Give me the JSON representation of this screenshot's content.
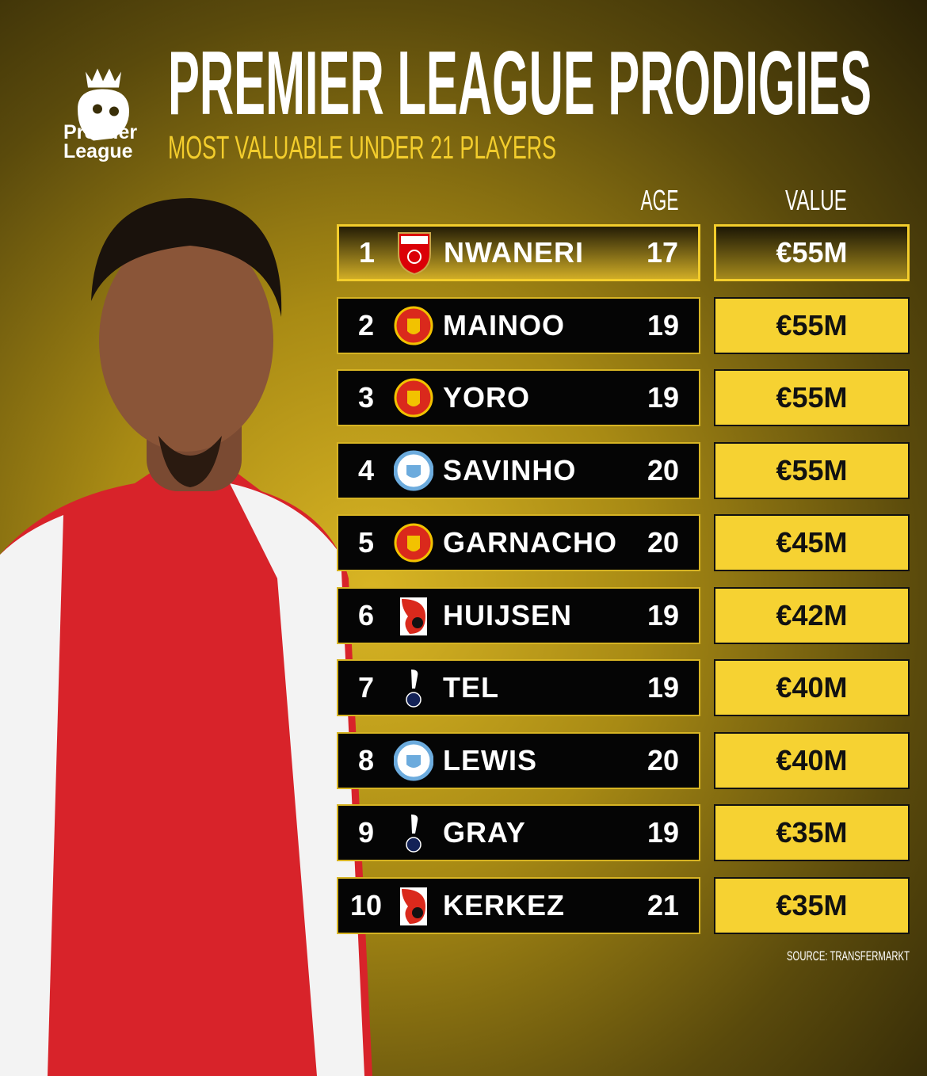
{
  "header": {
    "title": "PREMIER LEAGUE PRODIGIES",
    "subtitle": "MOST VALUABLE UNDER 21 PLAYERS",
    "logo_text": [
      "Premier",
      "League"
    ]
  },
  "chart_data": {
    "type": "table",
    "title": "PREMIER LEAGUE PRODIGIES",
    "subtitle": "MOST VALUABLE UNDER 21 PLAYERS",
    "columns": [
      "AGE",
      "VALUE"
    ],
    "rows": [
      {
        "rank": "1",
        "club": "arsenal",
        "player": "NWANERI",
        "age": "17",
        "value": "€55M",
        "highlight": true
      },
      {
        "rank": "2",
        "club": "manchester-united",
        "player": "MAINOO",
        "age": "19",
        "value": "€55M"
      },
      {
        "rank": "3",
        "club": "manchester-united",
        "player": "YORO",
        "age": "19",
        "value": "€55M"
      },
      {
        "rank": "4",
        "club": "manchester-city",
        "player": "SAVINHO",
        "age": "20",
        "value": "€55M"
      },
      {
        "rank": "5",
        "club": "manchester-united",
        "player": "GARNACHO",
        "age": "20",
        "value": "€45M"
      },
      {
        "rank": "6",
        "club": "bournemouth",
        "player": "HUIJSEN",
        "age": "19",
        "value": "€42M"
      },
      {
        "rank": "7",
        "club": "tottenham",
        "player": "TEL",
        "age": "19",
        "value": "€40M"
      },
      {
        "rank": "8",
        "club": "manchester-city",
        "player": "LEWIS",
        "age": "20",
        "value": "€40M"
      },
      {
        "rank": "9",
        "club": "tottenham",
        "player": "GRAY",
        "age": "19",
        "value": "€35M"
      },
      {
        "rank": "10",
        "club": "bournemouth",
        "player": "KERKEZ",
        "age": "21",
        "value": "€35M"
      }
    ],
    "source": "SOURCE: TRANSFERMARKT"
  },
  "colors": {
    "accent": "#f6d232",
    "row_bg": "#050505",
    "arsenal": "#db0007",
    "man_utd": "#da291c",
    "man_city": "#6cabdd",
    "bournemouth": "#da291c",
    "tottenham": "#132257"
  }
}
